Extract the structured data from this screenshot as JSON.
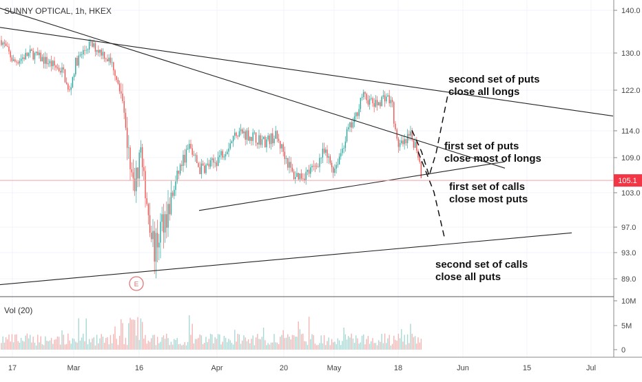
{
  "chart_data": {
    "type": "candlestick",
    "title": "SUNNY OPTICAL, 1h, HKEX",
    "price_axis": {
      "ticks": [
        "140.0",
        "130.0",
        "122.0",
        "114.0",
        "109.0",
        "103.0",
        "97.0",
        "93.0",
        "89.0"
      ]
    },
    "last_price": {
      "label": "105.1",
      "value": 105.1
    },
    "time_axis": {
      "labels": [
        "17",
        "Mar",
        "16",
        "Apr",
        "20",
        "May",
        "18",
        "Jun",
        "15",
        "Jul"
      ]
    },
    "earnings_marker": "E",
    "volume": {
      "label": "Vol (20)",
      "ticks": [
        "10M",
        "5M",
        "0"
      ]
    },
    "annotations": [
      {
        "lines": [
          "second set of puts",
          "close all longs"
        ]
      },
      {
        "lines": [
          "first set of puts",
          "close most of longs"
        ]
      },
      {
        "lines": [
          "first set of calls",
          "close most puts"
        ]
      },
      {
        "lines": [
          "second set of  calls",
          "close all puts"
        ]
      }
    ],
    "trend_lines": [
      {
        "name": "upper-resistance",
        "from": [
          0,
          136.0
        ],
        "to": [
          890,
          116.9
        ]
      },
      {
        "name": "descending-line",
        "from": [
          0,
          140.5
        ],
        "to": [
          733,
          107.2
        ]
      },
      {
        "name": "rising-support",
        "from": [
          289,
          99.9
        ],
        "to": [
          733,
          108.3
        ]
      },
      {
        "name": "lower-support",
        "from": [
          0,
          88.1
        ],
        "to": [
          830,
          96.1
        ]
      }
    ],
    "projection_path": [
      [
        598,
        114.1
      ],
      [
        612,
        110.1
      ],
      [
        623,
        105.9
      ],
      [
        633,
        109.8
      ],
      [
        650,
        121.0
      ]
    ],
    "projection_path_2": [
      [
        607,
        110.1
      ],
      [
        630,
        103.1
      ],
      [
        646,
        95.0
      ]
    ],
    "colors": {
      "up": "#26a69a",
      "down": "#ef5350",
      "last_price": "#f23645",
      "line": "#222222"
    }
  }
}
